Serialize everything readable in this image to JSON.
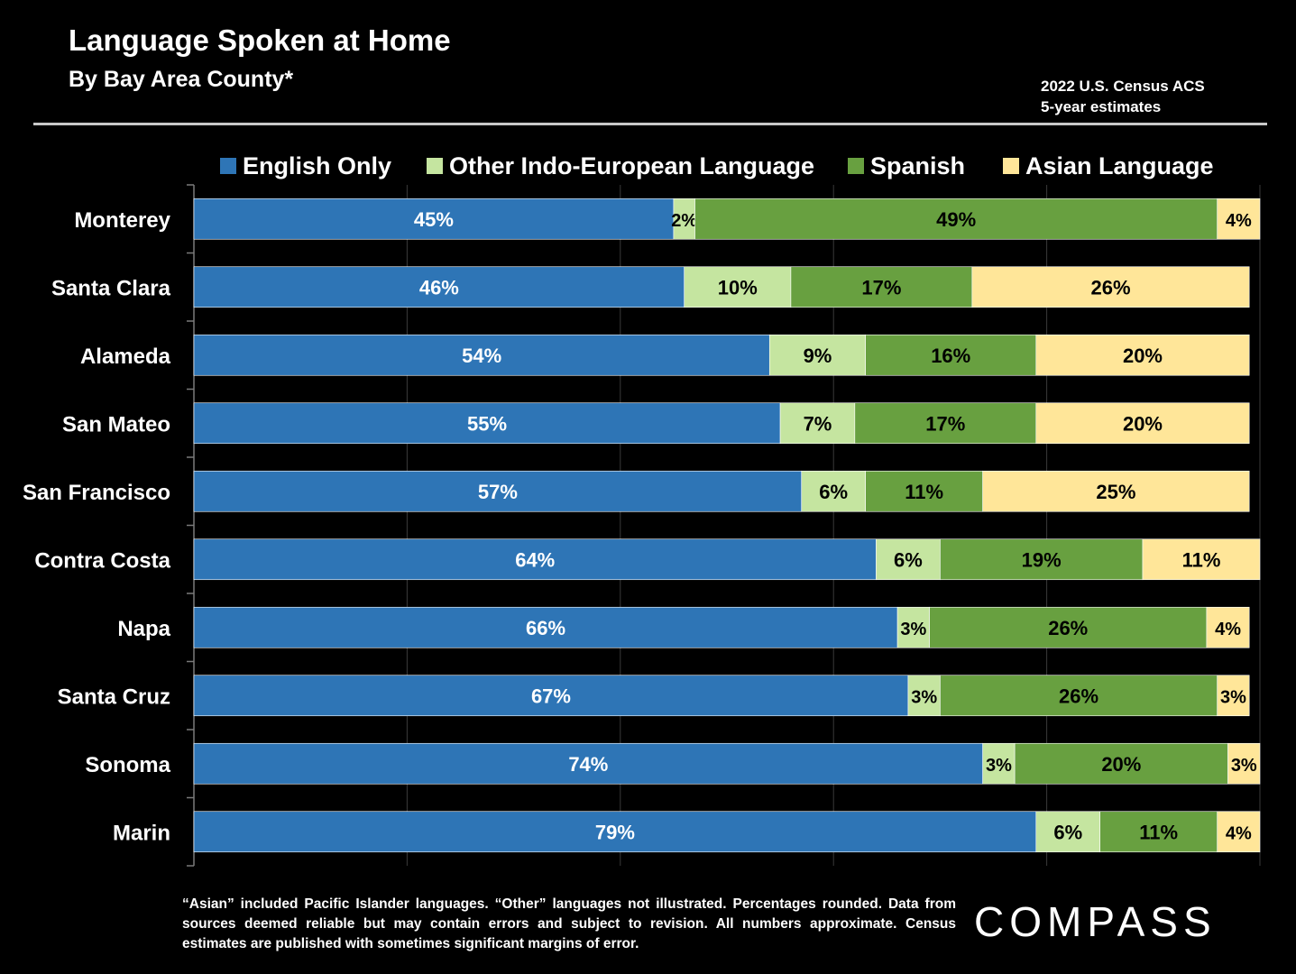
{
  "header": {
    "title": "Language Spoken at Home",
    "subtitle": "By Bay Area County*",
    "source_line1": "2022 U.S. Census ACS",
    "source_line2": "5-year estimates"
  },
  "chart_data": {
    "type": "bar",
    "orientation": "horizontal",
    "stacked": true,
    "categories": [
      "Monterey",
      "Santa Clara",
      "Alameda",
      "San Mateo",
      "San Francisco",
      "Contra Costa",
      "Napa",
      "Santa Cruz",
      "Sonoma",
      "Marin"
    ],
    "series": [
      {
        "name": "English Only",
        "color": "#2e75b6",
        "label_color": "#ffffff",
        "values": [
          45,
          46,
          54,
          55,
          57,
          64,
          66,
          67,
          74,
          79
        ]
      },
      {
        "name": "Other Indo-European Language",
        "color": "#c5e5a0",
        "label_color": "#000000",
        "values": [
          2,
          10,
          9,
          7,
          6,
          6,
          3,
          3,
          3,
          6
        ]
      },
      {
        "name": "Spanish",
        "color": "#68a040",
        "label_color": "#000000",
        "values": [
          49,
          17,
          16,
          17,
          11,
          19,
          26,
          26,
          20,
          11
        ]
      },
      {
        "name": "Asian Language",
        "color": "#ffe699",
        "label_color": "#000000",
        "values": [
          4,
          26,
          20,
          20,
          25,
          11,
          4,
          3,
          3,
          4
        ]
      }
    ],
    "value_suffix": "%",
    "xlim": [
      0,
      100
    ],
    "grid": true,
    "legend": "top",
    "title": "Language Spoken at Home",
    "subtitle": "By Bay Area County*"
  },
  "footnote": "“Asian” included Pacific Islander languages. “Other” languages not illustrated. Percentages rounded. Data from sources deemed reliable but may contain errors and subject to revision. All numbers approximate. Census estimates are published with sometimes significant margins of error.",
  "logo": {
    "text": "COMPASS"
  }
}
